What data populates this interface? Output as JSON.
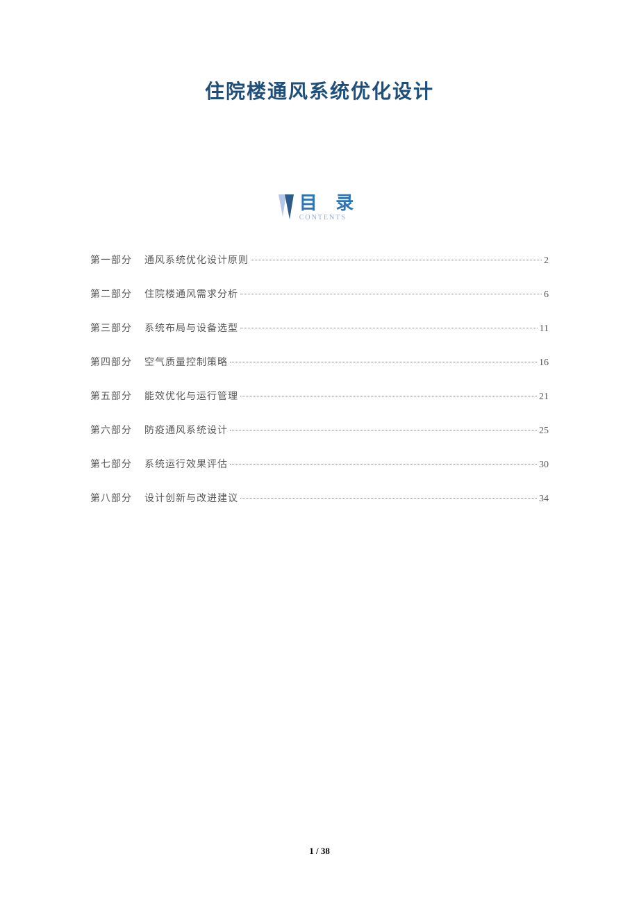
{
  "title": {
    "text": "住院楼通风系统优化设计",
    "color": "#1f4e79",
    "fontsize": 28
  },
  "toc_header": {
    "label": "目 录",
    "sublabel": "CONTENTS",
    "label_color": "#2e75b6",
    "sublabel_color": "#8faadc",
    "icon_light": "#b4c7e7",
    "icon_dark": "#2e5c8a"
  },
  "toc": {
    "text_color": "#595959",
    "dot_color": "#808080",
    "fontsize": 14,
    "row_spacing": 29,
    "items": [
      {
        "part": "第一部分",
        "name": "通风系统优化设计原则",
        "page": "2"
      },
      {
        "part": "第二部分",
        "name": "住院楼通风需求分析",
        "page": "6"
      },
      {
        "part": "第三部分",
        "name": "系统布局与设备选型",
        "page": "11"
      },
      {
        "part": "第四部分",
        "name": "空气质量控制策略",
        "page": "16"
      },
      {
        "part": "第五部分",
        "name": "能效优化与运行管理",
        "page": "21"
      },
      {
        "part": "第六部分",
        "name": "防疫通风系统设计",
        "page": "25"
      },
      {
        "part": "第七部分",
        "name": "系统运行效果评估",
        "page": "30"
      },
      {
        "part": "第八部分",
        "name": "设计创新与改进建议",
        "page": "34"
      }
    ]
  },
  "footer": {
    "current": "1",
    "sep": " / ",
    "total": "38"
  }
}
